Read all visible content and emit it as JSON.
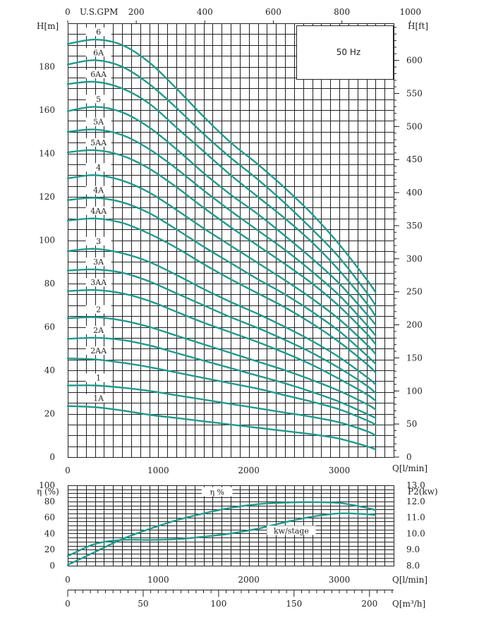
{
  "chart_data": [
    {
      "type": "line",
      "title": "50 Hz",
      "xlabel": "Q[l/min]",
      "ylabel": "H[m]",
      "ylabel_right": "H[ft]",
      "xlabel_top": "U.S.GPM",
      "xlim": [
        0,
        3600
      ],
      "ylim": [
        0,
        200
      ],
      "x_ticks": [
        "0",
        "1000",
        "2000",
        "3000"
      ],
      "y_ticks": [
        "0",
        "20",
        "40",
        "60",
        "80",
        "100",
        "120",
        "140",
        "160",
        "180"
      ],
      "gpm_ticks": [
        "0",
        "200",
        "400",
        "600",
        "800",
        "1000"
      ],
      "ft_ticks": [
        "0",
        "50",
        "100",
        "150",
        "200",
        "250",
        "300",
        "350",
        "400",
        "450",
        "500",
        "550",
        "600"
      ],
      "grid": true,
      "series": [
        {
          "name": "6",
          "x": [
            0,
            300,
            600,
            900,
            1200,
            1500,
            1800,
            2100,
            2400,
            2700,
            3000,
            3300,
            3400
          ],
          "values": [
            190.5,
            192.5,
            190.0,
            182.0,
            170.0,
            157.0,
            145.0,
            135.0,
            124.0,
            112.0,
            98.0,
            82.0,
            76.0
          ]
        },
        {
          "name": "6A",
          "x": [
            0,
            300,
            600,
            900,
            1200,
            1500,
            1800,
            2100,
            2400,
            2700,
            3000,
            3300,
            3400
          ],
          "values": [
            181.0,
            183.0,
            180.0,
            172.0,
            161.0,
            149.0,
            138.0,
            128.0,
            117.0,
            105.0,
            92.0,
            76.0,
            70.0
          ]
        },
        {
          "name": "6AA",
          "x": [
            0,
            300,
            600,
            900,
            1200,
            1500,
            1800,
            2100,
            2400,
            2700,
            3000,
            3300,
            3400
          ],
          "values": [
            172.0,
            173.0,
            170.0,
            163.0,
            152.0,
            141.0,
            130.0,
            120.0,
            110.0,
            99.0,
            86.0,
            71.0,
            65.0
          ]
        },
        {
          "name": "5",
          "x": [
            0,
            300,
            600,
            900,
            1200,
            1500,
            1800,
            2100,
            2400,
            2700,
            3000,
            3300,
            3400
          ],
          "values": [
            159.5,
            161.5,
            159.0,
            152.0,
            142.0,
            131.0,
            121.0,
            112.0,
            102.0,
            91.5,
            80.0,
            66.0,
            61.0
          ]
        },
        {
          "name": "5A",
          "x": [
            0,
            300,
            600,
            900,
            1200,
            1500,
            1800,
            2100,
            2400,
            2700,
            3000,
            3300,
            3400
          ],
          "values": [
            150.0,
            151.0,
            148.5,
            142.0,
            133.0,
            123.0,
            113.5,
            104.5,
            95.5,
            85.5,
            74.5,
            61.0,
            56.0
          ]
        },
        {
          "name": "5AA",
          "x": [
            0,
            300,
            600,
            900,
            1200,
            1500,
            1800,
            2100,
            2400,
            2700,
            3000,
            3300,
            3400
          ],
          "values": [
            140.5,
            141.5,
            139.0,
            133.0,
            124.5,
            115.0,
            106.0,
            97.5,
            89.0,
            80.0,
            69.5,
            57.0,
            52.0
          ]
        },
        {
          "name": "4",
          "x": [
            0,
            300,
            600,
            900,
            1200,
            1500,
            1800,
            2100,
            2400,
            2700,
            3000,
            3300,
            3400
          ],
          "values": [
            128.5,
            130.0,
            127.5,
            122.0,
            114.0,
            105.5,
            97.5,
            89.5,
            81.5,
            73.0,
            63.5,
            52.0,
            47.5
          ]
        },
        {
          "name": "4A",
          "x": [
            0,
            300,
            600,
            900,
            1200,
            1500,
            1800,
            2100,
            2400,
            2700,
            3000,
            3300,
            3400
          ],
          "values": [
            118.5,
            119.5,
            117.5,
            112.5,
            105.0,
            97.0,
            89.5,
            82.0,
            75.0,
            67.0,
            58.0,
            47.0,
            43.0
          ]
        },
        {
          "name": "4AA",
          "x": [
            0,
            300,
            600,
            900,
            1200,
            1500,
            1800,
            2100,
            2400,
            2700,
            3000,
            3300,
            3400
          ],
          "values": [
            109.0,
            110.0,
            108.0,
            103.0,
            96.5,
            89.0,
            82.0,
            75.5,
            69.0,
            61.5,
            53.0,
            43.0,
            39.0
          ]
        },
        {
          "name": "3",
          "x": [
            0,
            300,
            600,
            900,
            1200,
            1500,
            1800,
            2100,
            2400,
            2700,
            3000,
            3300,
            3400
          ],
          "values": [
            95.0,
            96.0,
            94.0,
            90.0,
            84.0,
            77.5,
            71.5,
            66.0,
            60.0,
            53.5,
            46.0,
            37.0,
            33.5
          ]
        },
        {
          "name": "3A",
          "x": [
            0,
            300,
            600,
            900,
            1200,
            1500,
            1800,
            2100,
            2400,
            2700,
            3000,
            3300,
            3400
          ],
          "values": [
            86.0,
            86.5,
            85.0,
            81.0,
            75.5,
            70.0,
            64.5,
            59.5,
            54.0,
            48.0,
            41.0,
            33.0,
            29.5
          ]
        },
        {
          "name": "3AA",
          "x": [
            0,
            300,
            600,
            900,
            1200,
            1500,
            1800,
            2100,
            2400,
            2700,
            3000,
            3300,
            3400
          ],
          "values": [
            76.5,
            77.0,
            75.5,
            72.0,
            67.0,
            62.0,
            57.5,
            53.0,
            48.0,
            42.5,
            36.0,
            29.0,
            26.0
          ]
        },
        {
          "name": "2",
          "x": [
            0,
            300,
            600,
            900,
            1200,
            1500,
            1800,
            2100,
            2400,
            2700,
            3000,
            3300,
            3400
          ],
          "values": [
            64.0,
            64.5,
            63.0,
            60.0,
            56.0,
            52.0,
            48.0,
            44.0,
            40.0,
            35.5,
            30.5,
            24.5,
            22.0
          ]
        },
        {
          "name": "2A",
          "x": [
            0,
            300,
            600,
            900,
            1200,
            1500,
            1800,
            2100,
            2400,
            2700,
            3000,
            3300,
            3400
          ],
          "values": [
            54.5,
            55.0,
            54.0,
            51.5,
            48.0,
            44.5,
            41.0,
            37.5,
            34.0,
            30.0,
            25.5,
            20.0,
            18.0
          ]
        },
        {
          "name": "2AA",
          "x": [
            0,
            300,
            600,
            900,
            1200,
            1500,
            1800,
            2100,
            2400,
            2700,
            3000,
            3300,
            3400
          ],
          "values": [
            45.5,
            45.0,
            43.5,
            41.5,
            39.0,
            36.5,
            34.0,
            31.5,
            28.5,
            25.5,
            22.0,
            17.0,
            15.0
          ]
        },
        {
          "name": "1",
          "x": [
            0,
            300,
            600,
            900,
            1200,
            1500,
            1800,
            2100,
            2400,
            2700,
            3000,
            3300,
            3400
          ],
          "values": [
            33.0,
            33.0,
            32.0,
            30.5,
            28.5,
            26.5,
            24.5,
            22.5,
            20.5,
            18.5,
            16.0,
            12.0,
            10.0
          ]
        },
        {
          "name": "1A",
          "x": [
            0,
            300,
            600,
            900,
            1200,
            1500,
            1800,
            2100,
            2400,
            2700,
            3000,
            3300,
            3400
          ],
          "values": [
            23.5,
            23.0,
            21.5,
            19.5,
            18.0,
            16.5,
            15.0,
            13.5,
            12.0,
            10.5,
            8.5,
            5.0,
            3.5
          ]
        }
      ]
    },
    {
      "type": "line",
      "xlabel": "Q[l/min]",
      "xlabel_m3h": "Q[m³/h]",
      "ylabel": "η (%)",
      "ylabel_right": "P2(kw)",
      "xlim": [
        0,
        3600
      ],
      "ylim": [
        0,
        100
      ],
      "ylim_right": [
        8.0,
        13.0
      ],
      "x_ticks": [
        "0",
        "1000",
        "2000",
        "3000"
      ],
      "y_ticks": [
        "0",
        "20",
        "40",
        "60",
        "80",
        "100"
      ],
      "y2_ticks": [
        "8.0",
        "9.0",
        "10.0",
        "11.0",
        "12.0",
        "13.0"
      ],
      "m3h_ticks": [
        "0",
        "50",
        "100",
        "150",
        "200"
      ],
      "grid": true,
      "series": [
        {
          "name": "η %",
          "axis": "left",
          "x": [
            0,
            300,
            600,
            900,
            1200,
            1500,
            1800,
            2100,
            2400,
            2700,
            3000,
            3300,
            3400
          ],
          "values": [
            1.0,
            17.0,
            33.0,
            45.5,
            56.5,
            65.0,
            72.0,
            76.5,
            78.5,
            79.0,
            78.0,
            72.0,
            69.0
          ]
        },
        {
          "name": "kw/stage",
          "axis": "right",
          "x": [
            0,
            300,
            600,
            900,
            1200,
            1500,
            1800,
            2100,
            2400,
            2700,
            3000,
            3300,
            3400
          ],
          "values": [
            8.6,
            9.35,
            9.6,
            9.6,
            9.65,
            9.8,
            10.0,
            10.3,
            10.7,
            11.05,
            11.25,
            11.2,
            11.15
          ]
        }
      ]
    }
  ]
}
